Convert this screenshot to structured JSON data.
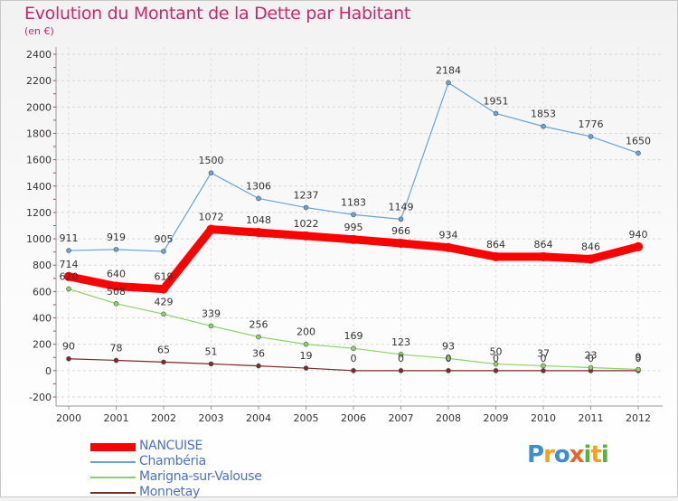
{
  "chart_data": {
    "type": "line",
    "title": "Evolution du Montant de la Dette par Habitant",
    "subtitle": "(en €)",
    "xlabel": "",
    "ylabel": "",
    "ylim": [
      -200,
      2400
    ],
    "yticks": [
      -200,
      0,
      200,
      400,
      600,
      800,
      1000,
      1200,
      1400,
      1600,
      1800,
      2000,
      2200,
      2400
    ],
    "categories": [
      "2000",
      "2001",
      "2002",
      "2003",
      "2004",
      "2005",
      "2006",
      "2007",
      "2008",
      "2009",
      "2010",
      "2011",
      "2012"
    ],
    "series": [
      {
        "name": "Monnetay",
        "color": "#7a2b2b",
        "width": 1.2,
        "marker": 5,
        "values": [
          90,
          78,
          65,
          51,
          36,
          19,
          0,
          0,
          0,
          0,
          0,
          0,
          0
        ]
      },
      {
        "name": "Marigna-sur-Valouse",
        "color": "#8cd269",
        "width": 1.2,
        "marker": 5,
        "values": [
          620,
          508,
          429,
          339,
          256,
          200,
          169,
          123,
          93,
          50,
          37,
          23,
          9
        ]
      },
      {
        "name": "Chambéria",
        "color": "#6aa4d4",
        "width": 1.2,
        "marker": 5,
        "values": [
          911,
          919,
          905,
          1500,
          1306,
          1237,
          1183,
          1149,
          2184,
          1951,
          1853,
          1776,
          1650
        ]
      },
      {
        "name": "NANCUISE",
        "color": "#ff0000",
        "width": 9,
        "marker": 6.5,
        "values": [
          714,
          640,
          619,
          1072,
          1048,
          1022,
          995,
          966,
          934,
          864,
          864,
          846,
          940
        ]
      }
    ]
  },
  "legend": [
    {
      "label": "NANCUISE",
      "color": "#ff0000",
      "thickness": 9
    },
    {
      "label": "Chambéria",
      "color": "#6aa4d4",
      "thickness": 2
    },
    {
      "label": "Marigna-sur-Valouse",
      "color": "#8cd269",
      "thickness": 2
    },
    {
      "label": "Monnetay",
      "color": "#7a2b2b",
      "thickness": 2
    }
  ],
  "logo": {
    "text": "Proxiti"
  }
}
